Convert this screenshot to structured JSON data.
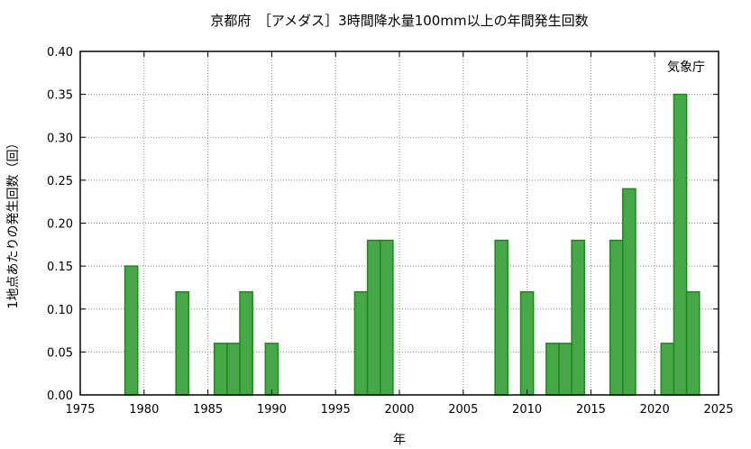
{
  "chart_data": {
    "type": "bar",
    "title": "京都府　［アメダス］3時間降水量100mm以上の年間発生回数",
    "xlabel": "年",
    "ylabel": "1地点あたりの発生回数（回）",
    "annotation": "気象庁",
    "xlim": [
      1975,
      2025
    ],
    "ylim": [
      0,
      0.4
    ],
    "x_ticks": [
      1975,
      1980,
      1985,
      1990,
      1995,
      2000,
      2005,
      2010,
      2015,
      2020,
      2025
    ],
    "x_tick_labels": [
      "1975",
      "1980",
      "1985",
      "1990",
      "1995",
      "2000",
      "2005",
      "2010",
      "2015",
      "2020",
      "2025"
    ],
    "y_ticks": [
      0,
      0.05,
      0.1,
      0.15,
      0.2,
      0.25,
      0.3,
      0.35,
      0.4
    ],
    "y_tick_labels": [
      "0.00",
      "0.05",
      "0.10",
      "0.15",
      "0.20",
      "0.25",
      "0.30",
      "0.35",
      "0.40"
    ],
    "grid": true,
    "bar_color": "#46a846",
    "bar_edge_color": "#1a8a1a",
    "series": [
      {
        "x": [
          1979,
          1983,
          1986,
          1987,
          1988,
          1990,
          1997,
          1998,
          1999,
          2008,
          2010,
          2012,
          2013,
          2014,
          2017,
          2018,
          2021,
          2022,
          2023
        ],
        "values": [
          0.15,
          0.12,
          0.06,
          0.06,
          0.12,
          0.06,
          0.12,
          0.18,
          0.18,
          0.18,
          0.12,
          0.06,
          0.06,
          0.18,
          0.18,
          0.24,
          0.06,
          0.35,
          0.12
        ]
      }
    ]
  }
}
